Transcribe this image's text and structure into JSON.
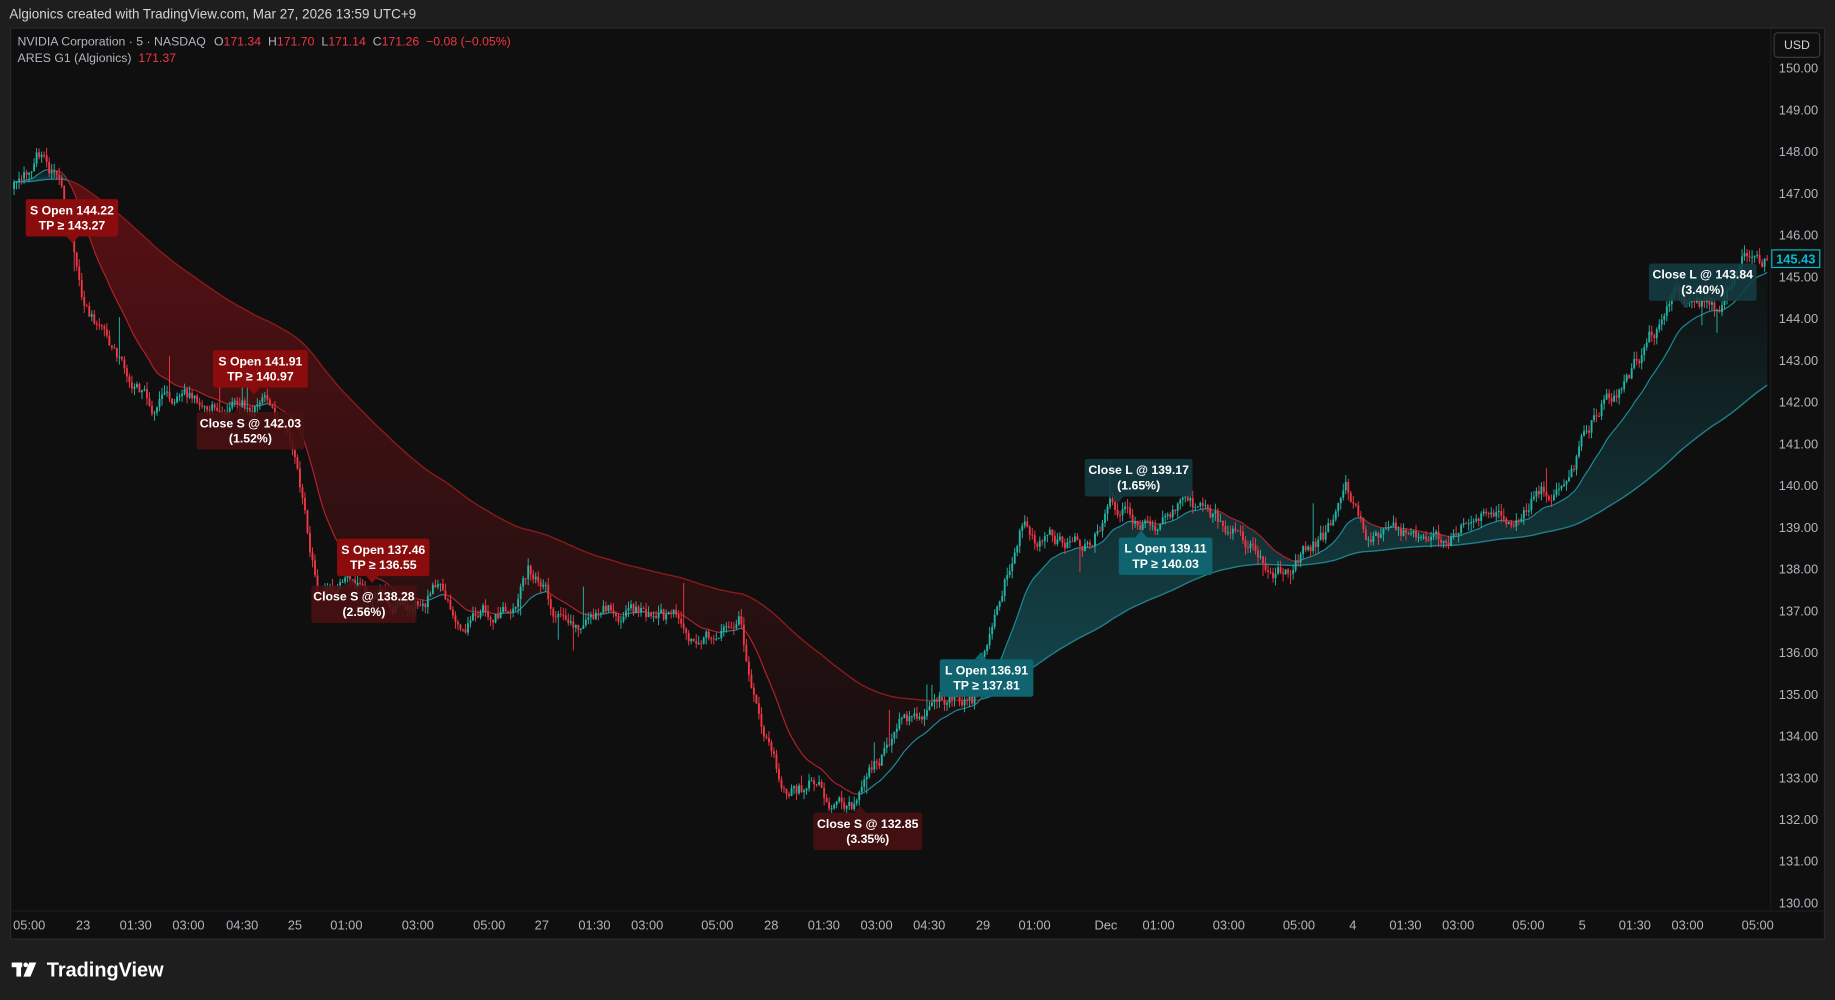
{
  "header": {
    "credit": "Algionics created with TradingView.com, Mar 27, 2026 13:59 UTC+9"
  },
  "legend": {
    "symbol": "NVIDIA Corporation · 5 · NASDAQ",
    "o_label": "O",
    "o": "171.34",
    "h_label": "H",
    "h": "171.70",
    "l_label": "L",
    "l": "171.14",
    "c_label": "C",
    "c": "171.26",
    "change": "−0.08 (−0.05%)",
    "indicator": "ARES G1 (Algionics)",
    "indicator_value": "171.37"
  },
  "currency_button": "USD",
  "last_price": "145.43",
  "price_axis": [
    "150.00",
    "149.00",
    "148.00",
    "147.00",
    "146.00",
    "145.00",
    "144.00",
    "143.00",
    "142.00",
    "141.00",
    "140.00",
    "139.00",
    "138.00",
    "137.00",
    "136.00",
    "135.00",
    "134.00",
    "133.00",
    "132.00",
    "131.00",
    "130.00"
  ],
  "time_axis": [
    "05:00",
    "23",
    "01:30",
    "03:00",
    "04:30",
    "25",
    "01:00",
    "03:00",
    "05:00",
    "27",
    "01:30",
    "03:00",
    "05:00",
    "28",
    "01:30",
    "03:00",
    "04:30",
    "29",
    "01:00",
    "Dec",
    "01:00",
    "03:00",
    "05:00",
    "4",
    "01:30",
    "03:00",
    "05:00",
    "5",
    "01:30",
    "03:00",
    "05:00"
  ],
  "annotations": [
    {
      "type": "short-open",
      "line1": "S Open 144.22",
      "line2": "TP ≥ 143.27"
    },
    {
      "type": "short-open",
      "line1": "S Open 141.91",
      "line2": "TP ≥ 140.97"
    },
    {
      "type": "short-close",
      "line1": "Close S @ 142.03",
      "line2": "(1.52%)"
    },
    {
      "type": "short-open",
      "line1": "S Open 137.46",
      "line2": "TP ≥ 136.55"
    },
    {
      "type": "short-close",
      "line1": "Close S @ 138.28",
      "line2": "(2.56%)"
    },
    {
      "type": "short-close",
      "line1": "Close S @ 132.85",
      "line2": "(3.35%)"
    },
    {
      "type": "long-open",
      "line1": "L Open 136.91",
      "line2": "TP ≥ 137.81"
    },
    {
      "type": "long-close",
      "line1": "Close L @ 139.17",
      "line2": "(1.65%)"
    },
    {
      "type": "long-open",
      "line1": "L Open 139.11",
      "line2": "TP ≥ 140.03"
    },
    {
      "type": "long-close",
      "line1": "Close L @ 143.84",
      "line2": "(3.40%)"
    }
  ],
  "footer": {
    "brand": "TradingView"
  },
  "colors": {
    "up": "#22b5a6",
    "down": "#f23645",
    "accent_cyan": "#00bcd4",
    "short_open": "#8a0c0c",
    "short_close": "#4a1111",
    "long_open": "#0f6470",
    "long_close": "#133c42",
    "legend_value": "#f23645"
  },
  "chart_data": {
    "type": "candlestick",
    "symbol": "NVIDIA Corporation",
    "interval": "5",
    "exchange": "NASDAQ",
    "ylim": [
      129.7,
      150.3
    ],
    "approx_close_path": [
      147.1,
      148.0,
      147.2,
      144.1,
      143.4,
      142.7,
      142.0,
      142.0,
      142.0,
      141.9,
      141.9,
      142.0,
      140.8,
      137.4,
      137.5,
      137.6,
      137.2,
      137.2,
      137.6,
      136.8,
      137.0,
      136.9,
      138.0,
      137.0,
      136.8,
      137.0,
      137.0,
      136.9,
      136.7,
      136.4,
      136.5,
      136.8,
      134.2,
      132.6,
      132.8,
      132.4,
      132.4,
      133.3,
      134.2,
      134.4,
      135.0,
      134.8,
      137.1,
      139.0,
      138.6,
      138.7,
      138.8,
      139.6,
      139.2,
      138.9,
      139.3,
      139.3,
      138.7,
      138.5,
      138.0,
      138.4,
      138.7,
      139.9,
      138.7,
      138.7,
      138.8,
      138.8,
      139.0,
      139.2,
      139.4,
      139.8,
      140.1,
      140.9,
      142.1,
      142.4,
      143.5,
      144.4,
      144.2,
      144.3,
      145.4,
      145.43
    ],
    "last": 145.43,
    "grid": false
  }
}
